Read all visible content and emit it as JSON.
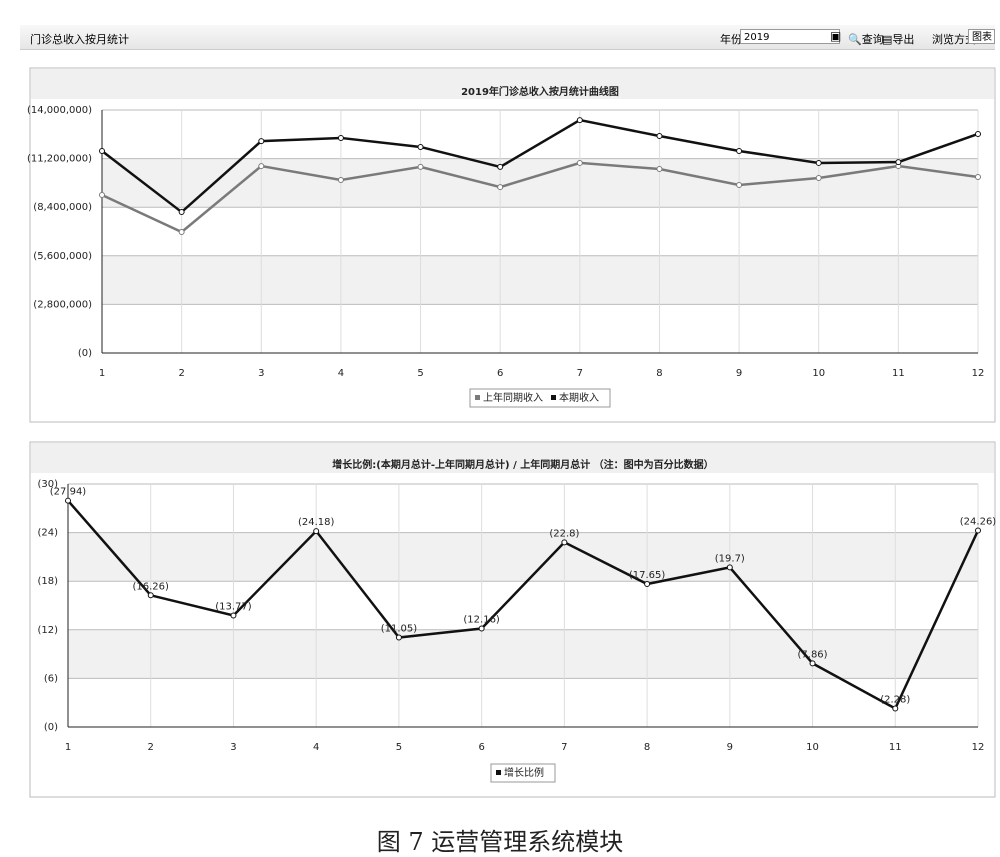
{
  "toolbar": {
    "title": "门诊总收入按月统计",
    "year_label": "年份",
    "year_value": "2019",
    "query": "查询",
    "export": "导出",
    "view_label": "浏览方式:",
    "view_value": "图表"
  },
  "chart_data": [
    {
      "type": "line",
      "title": "2019年门诊总收入按月统计曲线图",
      "categories": [
        "1",
        "2",
        "3",
        "4",
        "5",
        "6",
        "7",
        "8",
        "9",
        "10",
        "11",
        "12"
      ],
      "series": [
        {
          "name": "上年同期收入",
          "color": "#7a7a7a",
          "values": [
            9100000,
            6970000,
            10770000,
            9970000,
            10720000,
            9560000,
            10950000,
            10600000,
            9680000,
            10080000,
            10770000,
            10140000
          ]
        },
        {
          "name": "本期收入",
          "color": "#111111",
          "values": [
            11640000,
            8120000,
            12210000,
            12390000,
            11870000,
            10720000,
            13420000,
            12500000,
            11640000,
            10950000,
            11000000,
            12620000
          ]
        }
      ],
      "ylim": [
        0,
        14000000
      ],
      "yticks": [
        {
          "value": 0,
          "label": "(0)"
        },
        {
          "value": 2800000,
          "label": "(2,800,000)"
        },
        {
          "value": 5600000,
          "label": "(5,600,000)"
        },
        {
          "value": 8400000,
          "label": "(8,400,000)"
        },
        {
          "value": 11200000,
          "label": "(11,200,000)"
        },
        {
          "value": 14000000,
          "label": "(14,000,000)"
        }
      ],
      "grid": true
    },
    {
      "type": "line",
      "title": "增长比例:(本期月总计-上年同期月总计) / 上年同期月总计  （注：图中为百分比数据）",
      "categories": [
        "1",
        "2",
        "3",
        "4",
        "5",
        "6",
        "7",
        "8",
        "9",
        "10",
        "11",
        "12"
      ],
      "series": [
        {
          "name": "增长比例",
          "color": "#111111",
          "values": [
            27.94,
            16.26,
            13.77,
            24.18,
            11.05,
            12.16,
            22.8,
            17.65,
            19.7,
            7.86,
            2.28,
            24.26
          ],
          "value_labels": [
            "(27.94)",
            "(16.26)",
            "(13.77)",
            "(24.18)",
            "(11.05)",
            "(12.16)",
            "(22.8)",
            "(17.65)",
            "(19.7)",
            "(7.86)",
            "(2.28)",
            "(24.26)"
          ]
        }
      ],
      "ylim": [
        0,
        30
      ],
      "yticks": [
        {
          "value": 0,
          "label": "(0)"
        },
        {
          "value": 6,
          "label": "(6)"
        },
        {
          "value": 12,
          "label": "(12)"
        },
        {
          "value": 18,
          "label": "(18)"
        },
        {
          "value": 24,
          "label": "(24)"
        },
        {
          "value": 30,
          "label": "(30)"
        }
      ],
      "grid": true
    }
  ],
  "caption": "图 7  运营管理系统模块"
}
